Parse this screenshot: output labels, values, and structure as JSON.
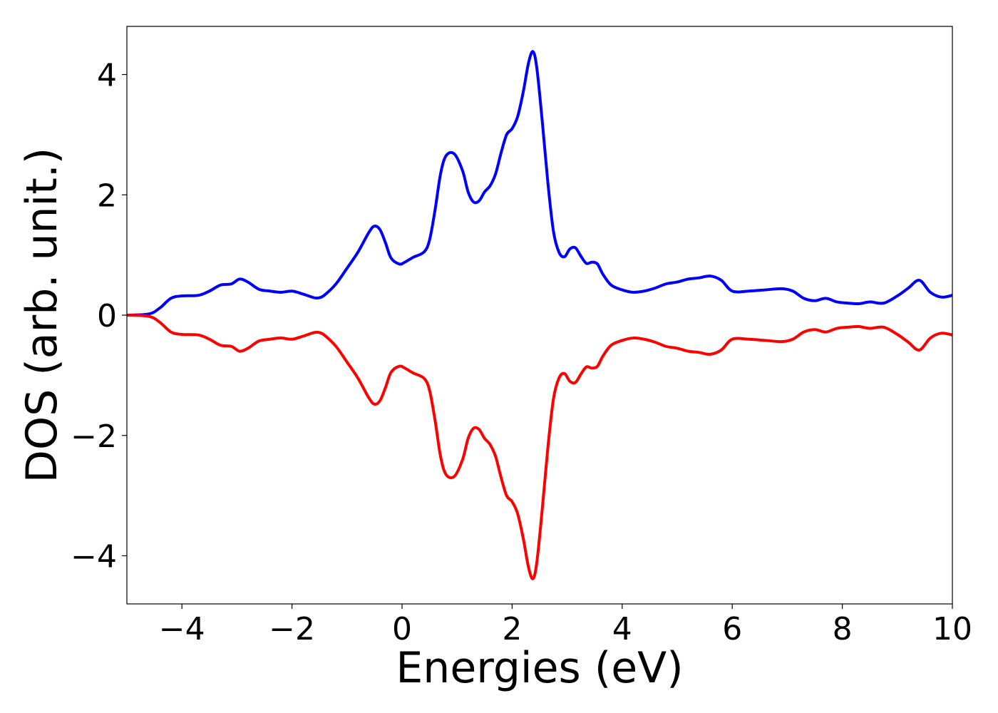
{
  "chart_data": {
    "type": "line",
    "xlabel": "Energies (eV)",
    "ylabel": "DOS (arb. unit.)",
    "xlim": [
      -5,
      10
    ],
    "ylim": [
      -4.8,
      4.8
    ],
    "xticks": [
      -4,
      -2,
      0,
      2,
      4,
      6,
      8,
      10
    ],
    "xtick_labels": [
      "−4",
      "−2",
      "0",
      "2",
      "4",
      "6",
      "8",
      "10"
    ],
    "yticks": [
      -4,
      -2,
      0,
      2,
      4
    ],
    "ytick_labels": [
      "−4",
      "−2",
      "0",
      "2",
      "4"
    ],
    "grid": false,
    "legend": "none",
    "series": [
      {
        "color": "#0000ff",
        "x": [
          -5.0,
          -4.6,
          -4.4,
          -4.2,
          -4.0,
          -3.7,
          -3.5,
          -3.3,
          -3.1,
          -2.95,
          -2.8,
          -2.6,
          -2.4,
          -2.2,
          -2.0,
          -1.8,
          -1.6,
          -1.5,
          -1.4,
          -1.2,
          -1.0,
          -0.8,
          -0.6,
          -0.5,
          -0.4,
          -0.3,
          -0.2,
          -0.05,
          0.05,
          0.2,
          0.4,
          0.5,
          0.6,
          0.7,
          0.8,
          0.95,
          1.1,
          1.2,
          1.3,
          1.4,
          1.5,
          1.6,
          1.7,
          1.8,
          1.9,
          2.0,
          2.1,
          2.2,
          2.3,
          2.38,
          2.45,
          2.55,
          2.65,
          2.75,
          2.85,
          2.95,
          3.05,
          3.15,
          3.25,
          3.35,
          3.45,
          3.55,
          3.65,
          3.8,
          4.0,
          4.2,
          4.4,
          4.6,
          4.8,
          5.0,
          5.2,
          5.4,
          5.6,
          5.8,
          6.0,
          6.3,
          6.6,
          6.9,
          7.1,
          7.3,
          7.5,
          7.7,
          7.9,
          8.1,
          8.3,
          8.5,
          8.75,
          9.0,
          9.2,
          9.4,
          9.6,
          9.8,
          10.0
        ],
        "values": [
          0.0,
          0.02,
          0.12,
          0.28,
          0.32,
          0.33,
          0.4,
          0.5,
          0.52,
          0.6,
          0.55,
          0.43,
          0.4,
          0.38,
          0.4,
          0.35,
          0.29,
          0.29,
          0.34,
          0.52,
          0.78,
          1.05,
          1.38,
          1.48,
          1.42,
          1.2,
          0.95,
          0.85,
          0.88,
          0.96,
          1.05,
          1.25,
          1.75,
          2.35,
          2.65,
          2.68,
          2.4,
          2.05,
          1.88,
          1.9,
          2.05,
          2.15,
          2.35,
          2.7,
          3.0,
          3.1,
          3.3,
          3.7,
          4.2,
          4.38,
          4.1,
          3.2,
          2.2,
          1.4,
          1.05,
          0.97,
          1.1,
          1.12,
          0.98,
          0.86,
          0.88,
          0.85,
          0.68,
          0.5,
          0.42,
          0.38,
          0.4,
          0.45,
          0.52,
          0.55,
          0.6,
          0.62,
          0.65,
          0.58,
          0.4,
          0.4,
          0.42,
          0.44,
          0.4,
          0.28,
          0.24,
          0.28,
          0.22,
          0.2,
          0.19,
          0.22,
          0.2,
          0.32,
          0.45,
          0.58,
          0.38,
          0.3,
          0.33
        ]
      },
      {
        "color": "#ff0000",
        "x": [
          -5.0,
          -4.6,
          -4.4,
          -4.2,
          -4.0,
          -3.7,
          -3.5,
          -3.3,
          -3.1,
          -2.95,
          -2.8,
          -2.6,
          -2.4,
          -2.2,
          -2.0,
          -1.8,
          -1.6,
          -1.5,
          -1.4,
          -1.2,
          -1.0,
          -0.8,
          -0.6,
          -0.5,
          -0.4,
          -0.3,
          -0.2,
          -0.05,
          0.05,
          0.2,
          0.4,
          0.5,
          0.6,
          0.7,
          0.8,
          0.95,
          1.1,
          1.2,
          1.3,
          1.4,
          1.5,
          1.6,
          1.7,
          1.8,
          1.9,
          2.0,
          2.1,
          2.2,
          2.3,
          2.38,
          2.45,
          2.55,
          2.65,
          2.75,
          2.85,
          2.95,
          3.05,
          3.15,
          3.25,
          3.35,
          3.45,
          3.55,
          3.65,
          3.8,
          4.0,
          4.2,
          4.4,
          4.6,
          4.8,
          5.0,
          5.2,
          5.4,
          5.6,
          5.8,
          6.0,
          6.3,
          6.6,
          6.9,
          7.1,
          7.3,
          7.5,
          7.7,
          7.9,
          8.1,
          8.3,
          8.5,
          8.75,
          9.0,
          9.2,
          9.4,
          9.6,
          9.8,
          10.0
        ],
        "values": [
          0.0,
          -0.02,
          -0.12,
          -0.28,
          -0.32,
          -0.33,
          -0.4,
          -0.5,
          -0.52,
          -0.6,
          -0.55,
          -0.43,
          -0.4,
          -0.38,
          -0.4,
          -0.35,
          -0.29,
          -0.29,
          -0.34,
          -0.52,
          -0.78,
          -1.05,
          -1.38,
          -1.48,
          -1.42,
          -1.2,
          -0.95,
          -0.85,
          -0.88,
          -0.96,
          -1.05,
          -1.25,
          -1.75,
          -2.35,
          -2.65,
          -2.68,
          -2.4,
          -2.05,
          -1.88,
          -1.9,
          -2.05,
          -2.15,
          -2.35,
          -2.7,
          -3.0,
          -3.1,
          -3.3,
          -3.7,
          -4.2,
          -4.38,
          -4.1,
          -3.2,
          -2.2,
          -1.4,
          -1.05,
          -0.97,
          -1.1,
          -1.12,
          -0.98,
          -0.86,
          -0.88,
          -0.85,
          -0.68,
          -0.5,
          -0.42,
          -0.38,
          -0.4,
          -0.45,
          -0.52,
          -0.55,
          -0.6,
          -0.62,
          -0.65,
          -0.58,
          -0.4,
          -0.4,
          -0.42,
          -0.44,
          -0.4,
          -0.28,
          -0.24,
          -0.28,
          -0.22,
          -0.2,
          -0.19,
          -0.22,
          -0.2,
          -0.32,
          -0.45,
          -0.58,
          -0.38,
          -0.3,
          -0.33
        ]
      }
    ]
  }
}
